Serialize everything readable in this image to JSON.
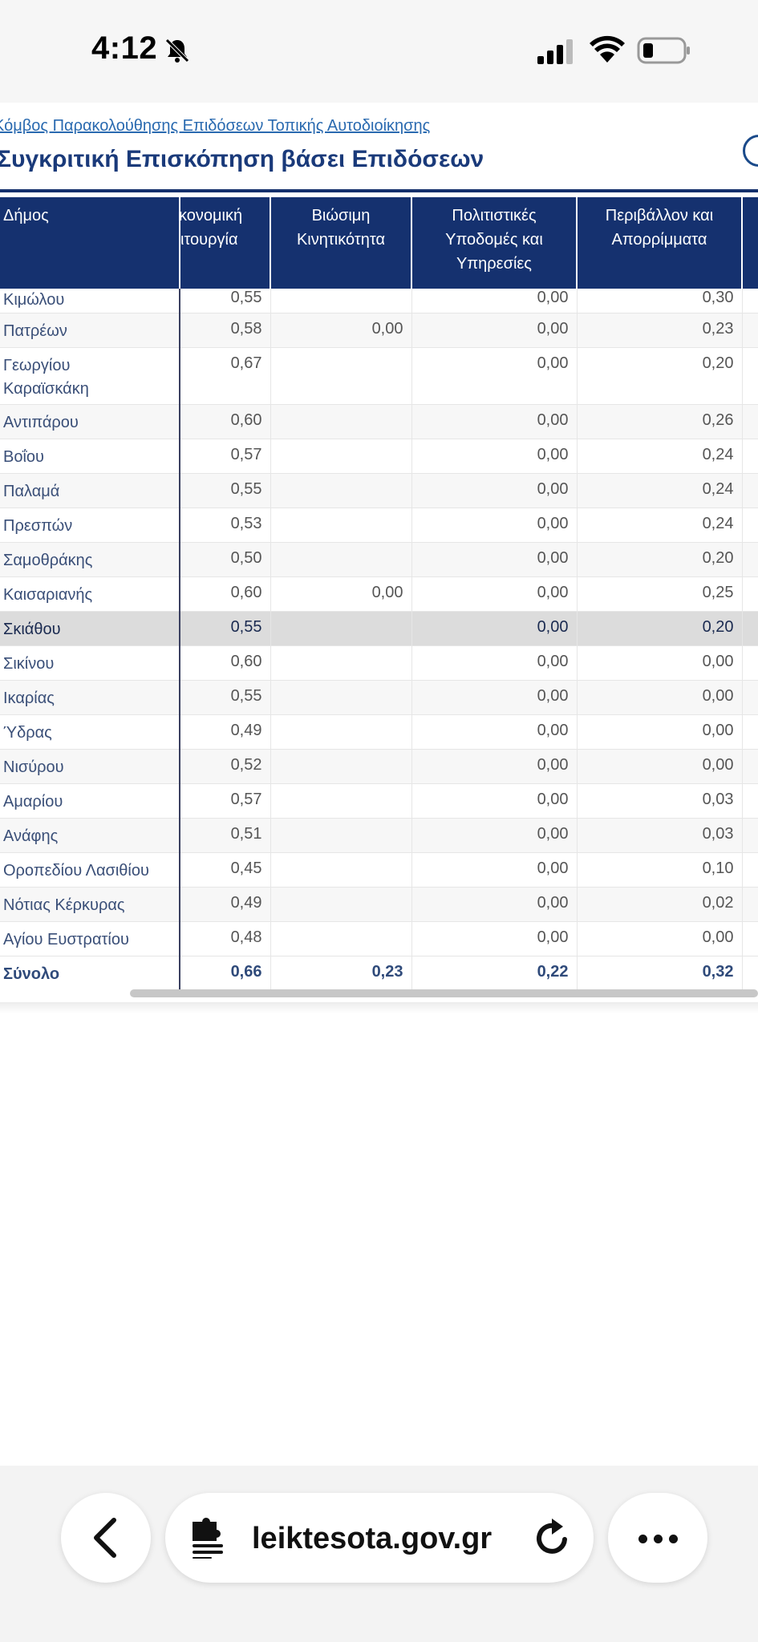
{
  "status_bar": {
    "time": "4:12",
    "icons": [
      "bell-slash-icon",
      "cellular-signal-icon",
      "wifi-icon",
      "battery-icon"
    ]
  },
  "header": {
    "breadcrumb": "Κόμβος Παρακολούθησης Επιδόσεων Τοπικής Αυτοδιοίκησης",
    "title": "Συγκριτική Επισκόπηση βάσει Επιδόσεων"
  },
  "table": {
    "columns": [
      "Δήμος",
      "Οικονομική Λειτουργία",
      "Βιώσιμη Κινητικότητα",
      "Πολιτιστικές Υποδομές και Υπηρεσίες",
      "Περιβάλλον και Απορρίμματα"
    ],
    "header_visible": {
      "col0": "Δήμος",
      "col1_line1": "κονομική",
      "col1_line2": "ιτουργία",
      "col2_line1": "Βιώσιμη",
      "col2_line2": "Κινητικότητα",
      "col3_line1": "Πολιτιστικές",
      "col3_line2": "Υποδομές και",
      "col3_line3": "Υπηρεσίες",
      "col4_line1": "Περιβάλλον και",
      "col4_line2": "Απορρίμματα"
    },
    "rows": [
      {
        "name": "Κιμώλου",
        "v1": "0,55",
        "v2": "",
        "v3": "0,00",
        "v4": "0,30"
      },
      {
        "name": "Πατρέων",
        "v1": "0,58",
        "v2": "0,00",
        "v3": "0,00",
        "v4": "0,23"
      },
      {
        "name": "Γεωργίου Καραϊσκάκη",
        "name_line1": "Γεωργίου",
        "name_line2": "Καραϊσκάκη",
        "v1": "0,67",
        "v2": "",
        "v3": "0,00",
        "v4": "0,20"
      },
      {
        "name": "Αντιπάρου",
        "v1": "0,60",
        "v2": "",
        "v3": "0,00",
        "v4": "0,26"
      },
      {
        "name": "Βοΐου",
        "v1": "0,57",
        "v2": "",
        "v3": "0,00",
        "v4": "0,24"
      },
      {
        "name": "Παλαμά",
        "v1": "0,55",
        "v2": "",
        "v3": "0,00",
        "v4": "0,24"
      },
      {
        "name": "Πρεσπών",
        "v1": "0,53",
        "v2": "",
        "v3": "0,00",
        "v4": "0,24"
      },
      {
        "name": "Σαμοθράκης",
        "v1": "0,50",
        "v2": "",
        "v3": "0,00",
        "v4": "0,20"
      },
      {
        "name": "Καισαριανής",
        "v1": "0,60",
        "v2": "0,00",
        "v3": "0,00",
        "v4": "0,25"
      },
      {
        "name": "Σκιάθου",
        "v1": "0,55",
        "v2": "",
        "v3": "0,00",
        "v4": "0,20"
      },
      {
        "name": "Σικίνου",
        "v1": "0,60",
        "v2": "",
        "v3": "0,00",
        "v4": "0,00"
      },
      {
        "name": "Ικαρίας",
        "v1": "0,55",
        "v2": "",
        "v3": "0,00",
        "v4": "0,00"
      },
      {
        "name": "Ύδρας",
        "v1": "0,49",
        "v2": "",
        "v3": "0,00",
        "v4": "0,00"
      },
      {
        "name": "Νισύρου",
        "v1": "0,52",
        "v2": "",
        "v3": "0,00",
        "v4": "0,00"
      },
      {
        "name": "Αμαρίου",
        "v1": "0,57",
        "v2": "",
        "v3": "0,00",
        "v4": "0,03"
      },
      {
        "name": "Ανάφης",
        "v1": "0,51",
        "v2": "",
        "v3": "0,00",
        "v4": "0,03"
      },
      {
        "name": "Οροπεδίου Λασιθίου",
        "v1": "0,45",
        "v2": "",
        "v3": "0,00",
        "v4": "0,10"
      },
      {
        "name": "Νότιας Κέρκυρας",
        "v1": "0,49",
        "v2": "",
        "v3": "0,00",
        "v4": "0,02"
      },
      {
        "name": "Αγίου Ευστρατίου",
        "v1": "0,48",
        "v2": "",
        "v3": "0,00",
        "v4": "0,00"
      }
    ],
    "selected_row": "Σκιάθου",
    "total": {
      "name": "Σύνολο",
      "v1": "0,66",
      "v2": "0,23",
      "v3": "0,22",
      "v4": "0,32"
    }
  },
  "browser_bar": {
    "url_visible": "leiktesota.gov.gr",
    "icons": [
      "back-chevron-icon",
      "reader-puzzle-icon",
      "reload-icon",
      "more-dots-icon"
    ]
  },
  "colors": {
    "header_bg": "#15316f",
    "title": "#1a3a7a",
    "link": "#2a6ab0",
    "selected_row": "#dcdcdc"
  }
}
